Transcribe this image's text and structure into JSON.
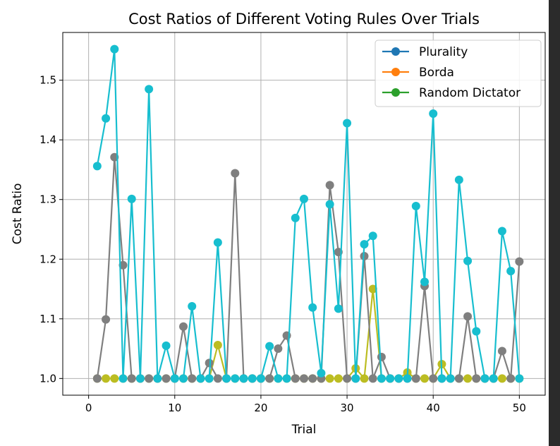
{
  "chart_data": {
    "type": "line",
    "title": "Cost Ratios of Different Voting Rules Over Trials",
    "xlabel": "Trial",
    "ylabel": "Cost Ratio",
    "xlim": [
      -3,
      53
    ],
    "ylim": [
      0.972,
      1.58
    ],
    "xticks": [
      0,
      10,
      20,
      30,
      40,
      50
    ],
    "yticks": [
      1.0,
      1.1,
      1.2,
      1.3,
      1.4,
      1.5
    ],
    "grid": true,
    "legend_position": "top-right",
    "legend": [
      {
        "name": "Plurality",
        "color": "#1f77b4"
      },
      {
        "name": "Borda",
        "color": "#ff7f0e"
      },
      {
        "name": "Random Dictator",
        "color": "#2ca02c"
      }
    ],
    "x": [
      1,
      2,
      3,
      4,
      5,
      6,
      7,
      8,
      9,
      10,
      11,
      12,
      13,
      14,
      15,
      16,
      17,
      18,
      19,
      20,
      21,
      22,
      23,
      24,
      25,
      26,
      27,
      28,
      29,
      30,
      31,
      32,
      33,
      34,
      35,
      36,
      37,
      38,
      39,
      40,
      41,
      42,
      43,
      44,
      45,
      46,
      47,
      48,
      49,
      50
    ],
    "series": [
      {
        "color": "#bcbd22",
        "values": [
          1.0,
          1.0,
          1.0,
          1.0,
          1.0,
          1.0,
          1.0,
          1.0,
          1.0,
          1.0,
          1.0,
          1.0,
          1.0,
          1.0,
          1.056,
          1.0,
          1.0,
          1.0,
          1.0,
          1.0,
          1.0,
          1.0,
          1.0,
          1.0,
          1.0,
          1.0,
          1.0,
          1.0,
          1.0,
          1.0,
          1.017,
          1.0,
          1.15,
          1.0,
          1.0,
          1.0,
          1.01,
          1.0,
          1.0,
          1.0,
          1.024,
          1.0,
          1.0,
          1.0,
          1.0,
          1.0,
          1.0,
          1.0,
          1.0,
          1.0
        ]
      },
      {
        "color": "#7f7f7f",
        "values": [
          1.0,
          1.099,
          1.371,
          1.19,
          1.0,
          1.0,
          1.0,
          1.0,
          1.0,
          1.0,
          1.087,
          1.0,
          1.0,
          1.026,
          1.0,
          1.0,
          1.344,
          1.0,
          1.0,
          1.0,
          1.0,
          1.05,
          1.072,
          1.0,
          1.0,
          1.0,
          1.0,
          1.324,
          1.212,
          1.0,
          1.0,
          1.205,
          1.0,
          1.036,
          1.0,
          1.0,
          1.0,
          1.0,
          1.155,
          1.0,
          1.0,
          1.0,
          1.0,
          1.104,
          1.0,
          1.0,
          1.0,
          1.046,
          1.0,
          1.196
        ]
      },
      {
        "color": "#17becf",
        "values": [
          1.356,
          1.436,
          1.552,
          1.0,
          1.301,
          1.0,
          1.485,
          1.0,
          1.055,
          1.0,
          1.0,
          1.121,
          1.0,
          1.0,
          1.228,
          1.0,
          1.0,
          1.0,
          1.0,
          1.0,
          1.054,
          1.0,
          1.0,
          1.269,
          1.301,
          1.119,
          1.009,
          1.292,
          1.117,
          1.428,
          1.0,
          1.225,
          1.239,
          1.0,
          1.0,
          1.0,
          1.0,
          1.289,
          1.162,
          1.444,
          1.0,
          1.0,
          1.333,
          1.197,
          1.079,
          1.0,
          1.0,
          1.247,
          1.18,
          1.0
        ]
      }
    ]
  }
}
